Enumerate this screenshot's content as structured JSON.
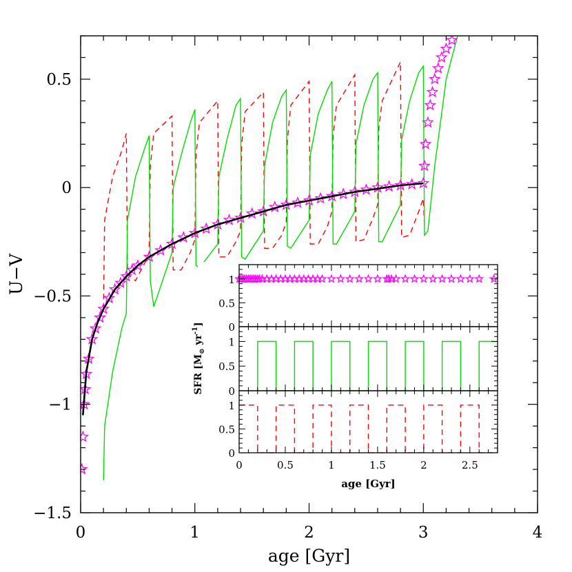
{
  "chart_data": [
    {
      "type": "line",
      "xlabel": "age [Gyr]",
      "ylabel": "U−V",
      "xlim": [
        0,
        4
      ],
      "ylim": [
        -1.5,
        0.7
      ],
      "x_ticks": [
        0,
        1,
        2,
        3,
        4
      ],
      "x_tick_labels": [
        "0",
        "1",
        "2",
        "3",
        "4"
      ],
      "y_ticks": [
        -1.5,
        -1,
        -0.5,
        0,
        0.5
      ],
      "y_tick_labels": [
        "−1.5",
        "−1",
        "−0.5",
        "0",
        "0.5"
      ],
      "grid": false,
      "series": [
        {
          "style": "black-solid",
          "color": "#000000",
          "x": [
            0.02,
            0.05,
            0.1,
            0.15,
            0.2,
            0.3,
            0.4,
            0.5,
            0.6,
            0.7,
            0.8,
            1.0,
            1.2,
            1.4,
            1.6,
            1.8,
            2.0,
            2.2,
            2.4,
            2.6,
            2.8,
            3.0
          ],
          "y": [
            -1.05,
            -0.85,
            -0.7,
            -0.62,
            -0.56,
            -0.47,
            -0.41,
            -0.36,
            -0.32,
            -0.29,
            -0.26,
            -0.21,
            -0.17,
            -0.14,
            -0.11,
            -0.08,
            -0.06,
            -0.04,
            -0.02,
            -0.005,
            0.01,
            0.02
          ]
        },
        {
          "style": "magenta-stars",
          "color": "#ff00ff",
          "x": [
            0.01,
            0.02,
            0.03,
            0.04,
            0.05,
            0.07,
            0.1,
            0.13,
            0.17,
            0.2,
            0.25,
            0.3,
            0.35,
            0.4,
            0.45,
            0.5,
            0.6,
            0.7,
            0.8,
            0.9,
            1.0,
            1.1,
            1.2,
            1.3,
            1.4,
            1.5,
            1.6,
            1.7,
            1.8,
            1.9,
            2.0,
            2.1,
            2.2,
            2.3,
            2.4,
            2.5,
            2.6,
            2.7,
            2.8,
            2.9,
            3.0,
            3.01,
            3.02,
            3.04,
            3.06,
            3.08,
            3.1,
            3.13,
            3.16,
            3.2,
            3.25,
            3.3
          ],
          "y": [
            -1.3,
            -1.15,
            -1.0,
            -0.93,
            -0.86,
            -0.79,
            -0.7,
            -0.65,
            -0.6,
            -0.56,
            -0.51,
            -0.47,
            -0.44,
            -0.41,
            -0.38,
            -0.36,
            -0.32,
            -0.29,
            -0.26,
            -0.23,
            -0.21,
            -0.19,
            -0.17,
            -0.15,
            -0.14,
            -0.12,
            -0.11,
            -0.09,
            -0.08,
            -0.07,
            -0.06,
            -0.05,
            -0.04,
            -0.03,
            -0.02,
            -0.01,
            0.0,
            0.005,
            0.01,
            0.015,
            0.02,
            0.1,
            0.2,
            0.3,
            0.38,
            0.44,
            0.5,
            0.55,
            0.6,
            0.64,
            0.68,
            0.72
          ]
        },
        {
          "style": "green-solid",
          "color": "#00dd00",
          "x": [
            0.2,
            0.21,
            0.28,
            0.36,
            0.4,
            0.41,
            0.48,
            0.56,
            0.6,
            0.61,
            0.64,
            0.8,
            0.81,
            0.88,
            0.96,
            1.0,
            1.01,
            1.04,
            1.2,
            1.21,
            1.28,
            1.36,
            1.4,
            1.41,
            1.44,
            1.6,
            1.61,
            1.68,
            1.76,
            1.8,
            1.81,
            1.84,
            2.0,
            2.01,
            2.08,
            2.16,
            2.2,
            2.21,
            2.24,
            2.4,
            2.41,
            2.48,
            2.56,
            2.6,
            2.61,
            2.64,
            2.8,
            2.81,
            2.88,
            2.96,
            3.0,
            3.01,
            3.04,
            3.1,
            3.2,
            3.3
          ],
          "y": [
            -1.35,
            -1.1,
            -0.85,
            -0.65,
            -0.58,
            -0.15,
            0.05,
            0.18,
            0.24,
            -0.43,
            -0.55,
            -0.3,
            0.0,
            0.15,
            0.3,
            0.36,
            -0.36,
            -0.37,
            -0.26,
            0.05,
            0.22,
            0.38,
            0.41,
            -0.32,
            -0.33,
            -0.2,
            0.1,
            0.3,
            0.42,
            0.45,
            -0.27,
            -0.28,
            -0.15,
            0.15,
            0.34,
            0.45,
            0.49,
            -0.26,
            -0.26,
            -0.11,
            0.2,
            0.38,
            0.5,
            0.53,
            -0.25,
            -0.25,
            -0.08,
            0.22,
            0.4,
            0.53,
            0.56,
            -0.22,
            -0.2,
            0.1,
            0.5,
            0.7
          ]
        },
        {
          "style": "red-dashed",
          "color": "#ff0000",
          "x": [
            0.2,
            0.21,
            0.28,
            0.36,
            0.4,
            0.41,
            0.48,
            0.56,
            0.6,
            0.61,
            0.64,
            0.8,
            0.81,
            0.88,
            0.96,
            1.0,
            1.01,
            1.04,
            1.2,
            1.21,
            1.28,
            1.36,
            1.4,
            1.41,
            1.44,
            1.6,
            1.61,
            1.68,
            1.76,
            1.8,
            1.81,
            1.84,
            2.0,
            2.01,
            2.08,
            2.16,
            2.2,
            2.21,
            2.24,
            2.4,
            2.41,
            2.48,
            2.56,
            2.6,
            2.61,
            2.64,
            2.8,
            2.81,
            2.88,
            2.96,
            3.0,
            3.01
          ],
          "y": [
            -0.56,
            -0.15,
            0.05,
            0.17,
            0.25,
            -0.4,
            -0.43,
            -0.35,
            -0.3,
            0.1,
            0.25,
            0.33,
            -0.38,
            -0.38,
            -0.3,
            -0.24,
            0.15,
            0.3,
            0.4,
            -0.32,
            -0.32,
            -0.25,
            -0.2,
            0.2,
            0.35,
            0.44,
            -0.28,
            -0.28,
            -0.22,
            -0.16,
            0.22,
            0.38,
            0.49,
            -0.26,
            -0.26,
            -0.18,
            -0.11,
            0.24,
            0.38,
            0.52,
            -0.25,
            -0.24,
            -0.14,
            -0.08,
            0.27,
            0.4,
            0.58,
            -0.23,
            -0.22,
            -0.11,
            -0.05,
            -0.18
          ]
        }
      ]
    },
    {
      "type": "line",
      "xlabel": "age [Gyr]",
      "ylabel": "SFR [M",
      "ylabel_sub": "⊙",
      "ylabel_rest": " yr",
      "ylabel_sup": "-1",
      "ylabel_end": "]",
      "xlim": [
        0,
        2.8
      ],
      "ylim": [
        0,
        1.3
      ],
      "x_ticks": [
        0,
        0.5,
        1,
        1.5,
        2,
        2.5
      ],
      "x_tick_labels": [
        "0",
        "0.5",
        "1",
        "1.5",
        "2",
        "2.5"
      ],
      "y_ticks": [
        0,
        0.5,
        1
      ],
      "y_tick_labels": [
        "0",
        "0.5",
        "1"
      ],
      "panels": [
        {
          "series": {
            "style": "magenta-stars",
            "color": "#ff00ff",
            "x": [
              0.0,
              0.02,
              0.04,
              0.06,
              0.08,
              0.1,
              0.12,
              0.14,
              0.16,
              0.18,
              0.2,
              0.22,
              0.25,
              0.3,
              0.35,
              0.4,
              0.45,
              0.5,
              0.55,
              0.6,
              0.65,
              0.7,
              0.75,
              0.8,
              0.85,
              0.9,
              1.0,
              1.1,
              1.2,
              1.3,
              1.4,
              1.5,
              1.6,
              1.62,
              1.65,
              1.7,
              1.8,
              1.9,
              2.0,
              2.1,
              2.2,
              2.3,
              2.4,
              2.5,
              2.6,
              2.76
            ],
            "y": [
              1,
              1,
              1,
              1,
              1,
              1,
              1,
              1,
              1,
              1,
              1,
              1,
              1,
              1,
              1,
              1,
              1,
              1,
              1,
              1,
              1,
              1,
              1,
              1,
              1,
              1,
              1,
              1,
              1,
              1,
              1,
              1,
              1,
              1,
              1,
              1,
              1,
              1,
              1,
              1,
              1,
              1,
              1,
              1,
              1,
              1
            ]
          }
        },
        {
          "series": {
            "style": "green-solid",
            "color": "#00dd00",
            "x": [
              0.2,
              0.2,
              0.4,
              0.4,
              0.6,
              0.6,
              0.8,
              0.8,
              1.0,
              1.0,
              1.2,
              1.2,
              1.4,
              1.4,
              1.6,
              1.6,
              1.8,
              1.8,
              2.0,
              2.0,
              2.2,
              2.2,
              2.4,
              2.4,
              2.6,
              2.6,
              2.8
            ],
            "y": [
              0,
              1,
              1,
              0,
              0,
              1,
              1,
              0,
              0,
              1,
              1,
              0,
              0,
              1,
              1,
              0,
              0,
              1,
              1,
              0,
              0,
              1,
              1,
              0,
              0,
              1,
              1
            ]
          }
        },
        {
          "series": {
            "style": "red-dashed",
            "color": "#ff0000",
            "x": [
              0.0,
              0.2,
              0.2,
              0.4,
              0.4,
              0.6,
              0.6,
              0.8,
              0.8,
              1.0,
              1.0,
              1.2,
              1.2,
              1.4,
              1.4,
              1.6,
              1.6,
              1.8,
              1.8,
              2.0,
              2.0,
              2.2,
              2.2,
              2.4,
              2.4,
              2.6,
              2.6,
              2.8,
              2.8
            ],
            "y": [
              1,
              1,
              0,
              0,
              1,
              1,
              0,
              0,
              1,
              1,
              0,
              0,
              1,
              1,
              0,
              0,
              1,
              1,
              0,
              0,
              1,
              1,
              0,
              0,
              1,
              1,
              0,
              0,
              1
            ]
          }
        }
      ]
    }
  ]
}
